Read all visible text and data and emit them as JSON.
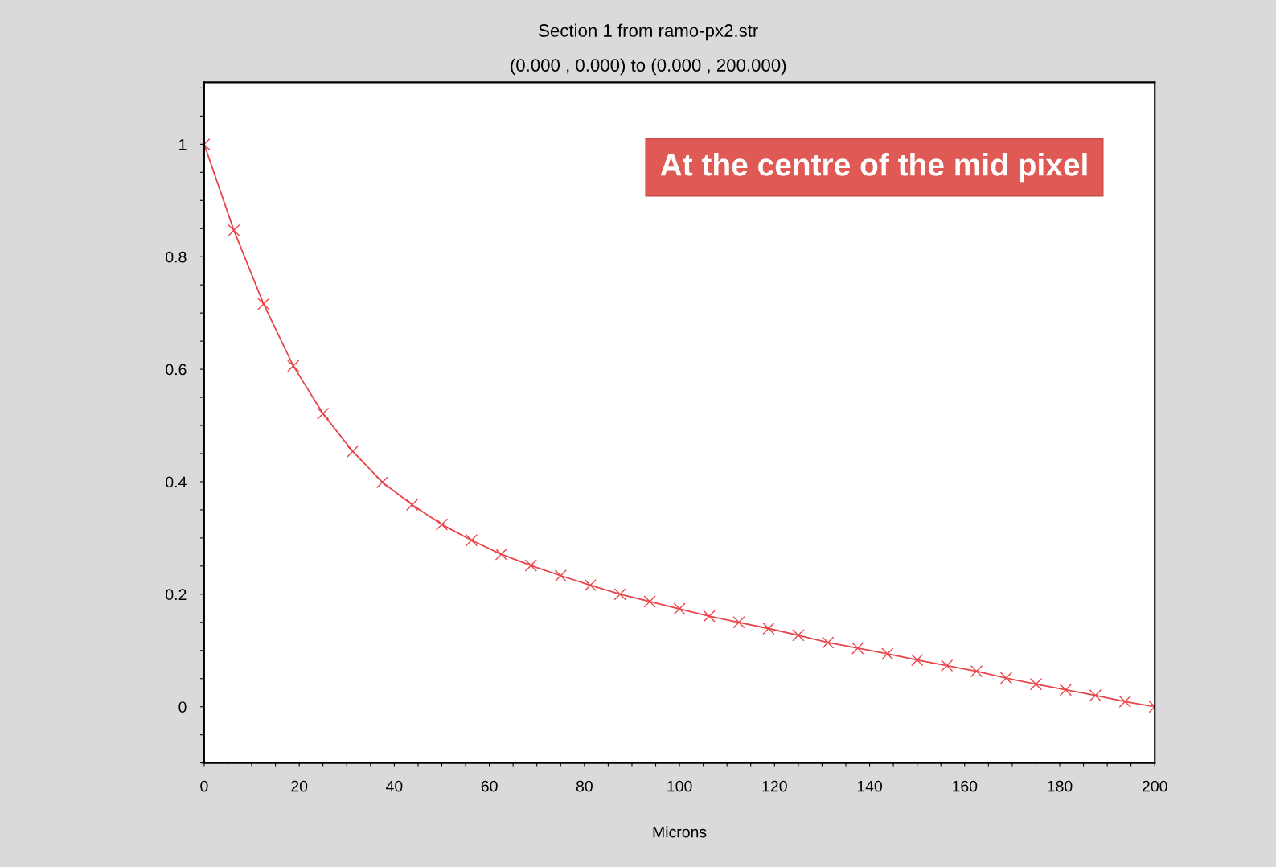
{
  "chart_data": {
    "type": "line",
    "title": "Section 1 from ramo-px2.str",
    "subtitle": "(0.000 , 0.000) to (0.000 , 200.000)",
    "xlabel": "Microns",
    "annotations": [
      "At the centre of the mid pixel"
    ],
    "x": [
      0,
      6.25,
      12.5,
      18.75,
      25,
      31.25,
      37.5,
      43.75,
      50,
      56.25,
      62.5,
      68.75,
      75,
      81.25,
      87.5,
      93.75,
      100,
      106.25,
      112.5,
      118.75,
      125,
      131.25,
      137.5,
      143.75,
      150,
      156.25,
      162.5,
      168.75,
      175,
      181.25,
      187.5,
      193.75,
      200
    ],
    "series": [
      {
        "color": "#e8454a",
        "values": [
          1.0,
          0.847,
          0.716,
          0.606,
          0.521,
          0.454,
          0.399,
          0.359,
          0.324,
          0.296,
          0.271,
          0.251,
          0.233,
          0.216,
          0.2,
          0.187,
          0.174,
          0.161,
          0.15,
          0.139,
          0.127,
          0.114,
          0.104,
          0.094,
          0.083,
          0.073,
          0.063,
          0.051,
          0.04,
          0.03,
          0.02,
          0.009,
          0.0
        ]
      }
    ],
    "marker": "cross",
    "line_style": "solid",
    "grid": false,
    "legend": false,
    "xlim": [
      0,
      200
    ],
    "ylim": [
      -0.1,
      1.11
    ],
    "xticks": [
      0,
      {
        "value": 5,
        "label": null
      },
      {
        "value": 10,
        "label": null
      },
      {
        "value": 15,
        "label": null
      },
      20,
      {
        "value": 25,
        "label": null
      },
      {
        "value": 30,
        "label": null
      },
      {
        "value": 35,
        "label": null
      },
      40,
      {
        "value": 45,
        "label": null
      },
      {
        "value": 50,
        "label": null
      },
      {
        "value": 55,
        "label": null
      },
      60,
      {
        "value": 65,
        "label": null
      },
      {
        "value": 70,
        "label": null
      },
      {
        "value": 75,
        "label": null
      },
      80,
      {
        "value": 85,
        "label": null
      },
      {
        "value": 90,
        "label": null
      },
      {
        "value": 95,
        "label": null
      },
      100,
      {
        "value": 105,
        "label": null
      },
      {
        "value": 110,
        "label": null
      },
      {
        "value": 115,
        "label": null
      },
      120,
      {
        "value": 125,
        "label": null
      },
      {
        "value": 130,
        "label": null
      },
      {
        "value": 135,
        "label": null
      },
      140,
      {
        "value": 145,
        "label": null
      },
      {
        "value": 150,
        "label": null
      },
      {
        "value": 155,
        "label": null
      },
      160,
      {
        "value": 165,
        "label": null
      },
      {
        "value": 170,
        "label": null
      },
      {
        "value": 175,
        "label": null
      },
      180,
      {
        "value": 185,
        "label": null
      },
      {
        "value": 190,
        "label": null
      },
      {
        "value": 195,
        "label": null
      },
      200
    ],
    "yticks": [
      {
        "value": -0.1,
        "label": null
      },
      {
        "value": -0.05,
        "label": null
      },
      0,
      {
        "value": 0.05,
        "label": null
      },
      {
        "value": 0.1,
        "label": null
      },
      {
        "value": 0.15,
        "label": null
      },
      0.2,
      {
        "value": 0.25,
        "label": null
      },
      {
        "value": 0.3,
        "label": null
      },
      {
        "value": 0.35,
        "label": null
      },
      0.4,
      {
        "value": 0.45,
        "label": null
      },
      {
        "value": 0.5,
        "label": null
      },
      {
        "value": 0.55,
        "label": null
      },
      0.6,
      {
        "value": 0.65,
        "label": null
      },
      {
        "value": 0.7,
        "label": null
      },
      {
        "value": 0.75,
        "label": null
      },
      0.8,
      {
        "value": 0.85,
        "label": null
      },
      {
        "value": 0.9,
        "label": null
      },
      {
        "value": 0.95,
        "label": null
      },
      1,
      {
        "value": 1.05,
        "label": null
      },
      {
        "value": 1.1,
        "label": null
      }
    ]
  }
}
